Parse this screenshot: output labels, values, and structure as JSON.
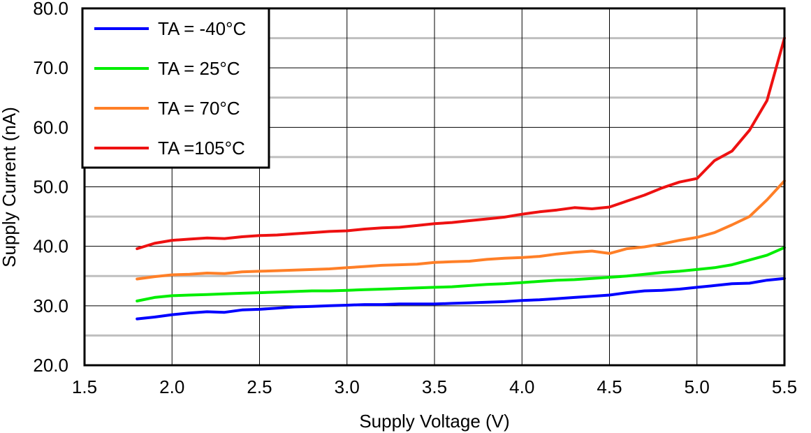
{
  "chart_data": {
    "type": "line",
    "xlabel": "Supply Voltage (V)",
    "ylabel": "Supply Current (nA)",
    "xlim": [
      1.5,
      5.5
    ],
    "ylim": [
      20.0,
      80.0
    ],
    "x_ticks": [
      "1.5",
      "2.0",
      "2.5",
      "3.0",
      "3.5",
      "4.0",
      "4.5",
      "5.0",
      "5.5"
    ],
    "y_ticks": [
      "20.0",
      "30.0",
      "40.0",
      "50.0",
      "60.0",
      "70.0",
      "80.0"
    ],
    "x_tick_values": [
      1.5,
      2.0,
      2.5,
      3.0,
      3.5,
      4.0,
      4.5,
      5.0,
      5.5
    ],
    "y_tick_values": [
      20,
      30,
      40,
      50,
      60,
      70,
      80
    ],
    "y_minor_gridlines": [
      25,
      35,
      45,
      55,
      65,
      75
    ],
    "grid": true,
    "legend_position": "top-left",
    "x": [
      1.8,
      1.9,
      2.0,
      2.1,
      2.2,
      2.3,
      2.4,
      2.5,
      2.6,
      2.7,
      2.8,
      2.9,
      3.0,
      3.1,
      3.2,
      3.3,
      3.4,
      3.5,
      3.6,
      3.7,
      3.8,
      3.9,
      4.0,
      4.1,
      4.2,
      4.3,
      4.4,
      4.5,
      4.6,
      4.7,
      4.8,
      4.9,
      5.0,
      5.1,
      5.2,
      5.3,
      5.4,
      5.5
    ],
    "series": [
      {
        "name": "TA = -40°C",
        "color": "#0000ff",
        "values": [
          27.8,
          28.1,
          28.5,
          28.8,
          29.0,
          28.9,
          29.3,
          29.4,
          29.6,
          29.8,
          29.9,
          30.0,
          30.1,
          30.2,
          30.2,
          30.3,
          30.3,
          30.3,
          30.4,
          30.5,
          30.6,
          30.7,
          30.9,
          31.0,
          31.2,
          31.4,
          31.6,
          31.8,
          32.2,
          32.5,
          32.6,
          32.8,
          33.1,
          33.4,
          33.7,
          33.8,
          34.3,
          34.6
        ]
      },
      {
        "name": "TA = 25°C",
        "color": "#00ee00",
        "values": [
          30.8,
          31.4,
          31.7,
          31.8,
          31.9,
          32.0,
          32.1,
          32.2,
          32.3,
          32.4,
          32.5,
          32.5,
          32.6,
          32.7,
          32.8,
          32.9,
          33.0,
          33.1,
          33.2,
          33.4,
          33.6,
          33.7,
          33.9,
          34.1,
          34.3,
          34.4,
          34.6,
          34.8,
          35.0,
          35.3,
          35.6,
          35.8,
          36.1,
          36.4,
          36.9,
          37.7,
          38.5,
          39.8
        ]
      },
      {
        "name": "TA = 70°C",
        "color": "#ff7f27",
        "values": [
          34.5,
          34.9,
          35.2,
          35.3,
          35.5,
          35.4,
          35.7,
          35.8,
          35.9,
          36.0,
          36.1,
          36.2,
          36.4,
          36.6,
          36.8,
          36.9,
          37.0,
          37.3,
          37.4,
          37.5,
          37.8,
          38.0,
          38.1,
          38.3,
          38.7,
          39.0,
          39.2,
          38.8,
          39.6,
          39.9,
          40.4,
          41.0,
          41.5,
          42.3,
          43.6,
          45.0,
          47.8,
          51.0
        ]
      },
      {
        "name": "TA =105°C",
        "color": "#ee1111",
        "values": [
          39.6,
          40.5,
          41.0,
          41.2,
          41.4,
          41.3,
          41.6,
          41.8,
          41.9,
          42.1,
          42.3,
          42.5,
          42.6,
          42.9,
          43.1,
          43.2,
          43.5,
          43.8,
          44.0,
          44.3,
          44.6,
          44.9,
          45.4,
          45.8,
          46.1,
          46.5,
          46.3,
          46.6,
          47.6,
          48.6,
          49.8,
          50.8,
          51.4,
          54.4,
          56.0,
          59.5,
          64.5,
          75.0
        ]
      }
    ]
  }
}
